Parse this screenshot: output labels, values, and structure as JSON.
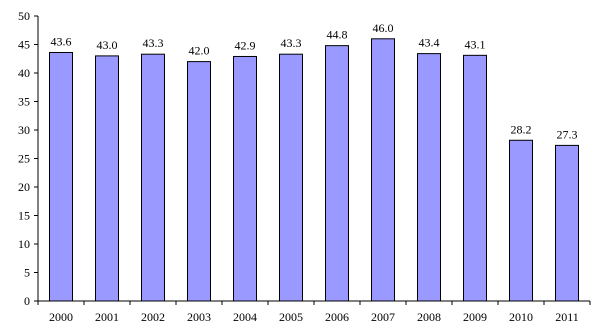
{
  "chart_data": {
    "type": "bar",
    "categories": [
      "2000",
      "2001",
      "2002",
      "2003",
      "2004",
      "2005",
      "2006",
      "2007",
      "2008",
      "2009",
      "2010",
      "2011"
    ],
    "values": [
      43.6,
      43.0,
      43.3,
      42.0,
      42.9,
      43.3,
      44.8,
      46.0,
      43.4,
      43.1,
      28.2,
      27.3
    ],
    "data_labels": [
      "43.6",
      "43.0",
      "43.3",
      "42.0",
      "42.9",
      "43.3",
      "44.8",
      "46.0",
      "43.4",
      "43.1",
      "28.2",
      "27.3"
    ],
    "title": "",
    "xlabel": "",
    "ylabel": "",
    "ylim": [
      0,
      50
    ],
    "yticks": [
      0,
      5,
      10,
      15,
      20,
      25,
      30,
      35,
      40,
      45,
      50
    ],
    "grid": false,
    "legend": "none",
    "colors": {
      "bar_fill": "#9999FF",
      "bar_stroke": "#000000",
      "axis": "#000000"
    }
  }
}
